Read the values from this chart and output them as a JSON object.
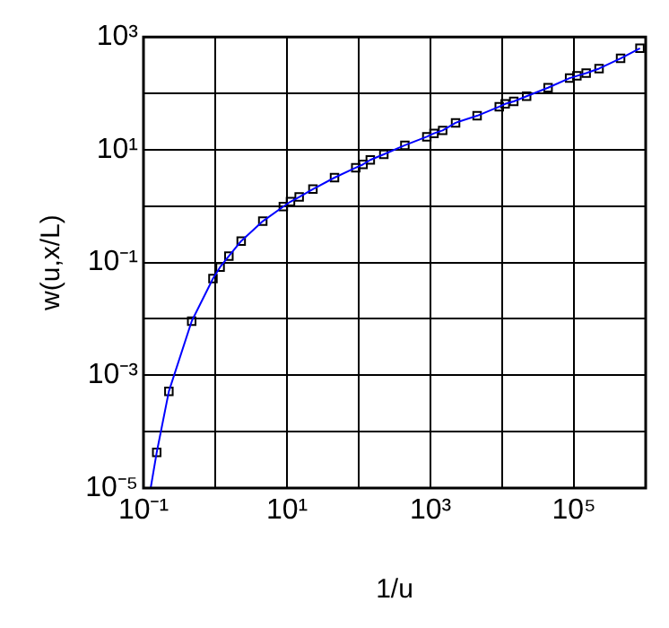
{
  "chart_data": {
    "type": "line",
    "xlabel": "1/u",
    "ylabel": "w(u,x/L)",
    "log": "xy",
    "grid": true,
    "legend": false,
    "xlim": [
      0.1,
      1000000
    ],
    "ylim": [
      1e-05,
      1000
    ],
    "xticks": [
      {
        "value": 0.1,
        "label": "10⁻¹"
      },
      {
        "value": 1,
        "label": null
      },
      {
        "value": 10,
        "label": "10¹"
      },
      {
        "value": 100,
        "label": null
      },
      {
        "value": 1000,
        "label": "10³"
      },
      {
        "value": 10000,
        "label": null
      },
      {
        "value": 100000,
        "label": "10⁵"
      },
      {
        "value": 1000000,
        "label": null
      }
    ],
    "yticks": [
      {
        "value": 1e-05,
        "label": "10⁻⁵"
      },
      {
        "value": 0.0001,
        "label": null
      },
      {
        "value": 0.001,
        "label": "10⁻³"
      },
      {
        "value": 0.01,
        "label": null
      },
      {
        "value": 0.1,
        "label": "10⁻¹"
      },
      {
        "value": 1,
        "label": null
      },
      {
        "value": 10,
        "label": "10¹"
      },
      {
        "value": 100,
        "label": null
      },
      {
        "value": 1000,
        "label": "10³"
      }
    ],
    "series": [
      {
        "type": "line",
        "color": "#0000ff",
        "marker": "none",
        "line_style": "solid",
        "x": [
          0.126,
          0.153,
          0.226,
          0.47,
          0.93,
          1.17,
          1.55,
          2.3,
          4.6,
          8.9,
          11.2,
          14.8,
          23,
          46,
          91,
          115,
          145,
          224,
          440,
          890,
          1120,
          1480,
          2240,
          4470,
          9100,
          11000,
          14500,
          21900,
          43600,
          87000,
          110000,
          148000,
          224000,
          447000,
          832000
        ],
        "values": [
          1e-05,
          4.3e-05,
          0.00052,
          0.0091,
          0.052,
          0.083,
          0.13,
          0.24,
          0.54,
          0.98,
          1.2,
          1.45,
          2.0,
          3.2,
          4.8,
          5.5,
          6.6,
          8.3,
          12,
          17,
          19.5,
          22,
          30,
          40,
          58,
          65,
          72,
          89,
          126,
          186,
          204,
          229,
          275,
          417,
          631
        ]
      },
      {
        "type": "scatter",
        "color": "#000000",
        "marker": "square",
        "x": [
          0.153,
          0.226,
          0.47,
          0.93,
          1.17,
          1.55,
          2.3,
          4.6,
          8.9,
          11.2,
          14.8,
          23,
          46,
          91,
          115,
          145,
          224,
          440,
          890,
          1120,
          1480,
          2240,
          4470,
          9100,
          11000,
          14500,
          21900,
          43600,
          87000,
          110000,
          148000,
          224000,
          447000,
          832000
        ],
        "values": [
          4.3e-05,
          0.00052,
          0.0091,
          0.052,
          0.083,
          0.13,
          0.24,
          0.54,
          0.98,
          1.2,
          1.45,
          2.0,
          3.2,
          4.8,
          5.5,
          6.6,
          8.3,
          12,
          17,
          19.5,
          22,
          30,
          40,
          58,
          65,
          72,
          89,
          126,
          186,
          204,
          229,
          275,
          417,
          631
        ]
      }
    ]
  }
}
